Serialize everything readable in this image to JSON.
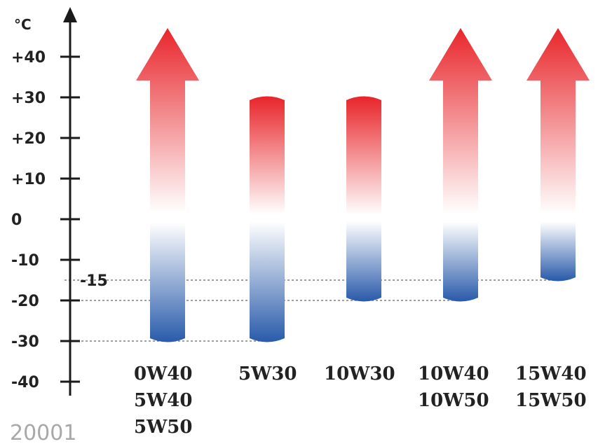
{
  "chart_data": {
    "type": "bar",
    "y_unit": "°C",
    "y_ticks": [
      "+40",
      "+30",
      "+20",
      "+10",
      "0",
      "-10",
      "-20",
      "-30",
      "-40"
    ],
    "y_tick_values": [
      40,
      30,
      20,
      10,
      0,
      -10,
      -20,
      -30,
      -40
    ],
    "ylim": [
      -40,
      40
    ],
    "reference_lines": [
      {
        "value": -15,
        "label": "-15"
      },
      {
        "value": -20,
        "label": ""
      },
      {
        "value": -30,
        "label": ""
      }
    ],
    "categories": [
      [
        "0W40",
        "5W40",
        "5W50"
      ],
      [
        "5W30"
      ],
      [
        "10W30"
      ],
      [
        "10W40",
        "10W50"
      ],
      [
        "15W40",
        "15W50"
      ]
    ],
    "series": [
      {
        "low": [
          -30,
          -30,
          -20,
          -20,
          -15
        ],
        "high": [
          40,
          30,
          30,
          40,
          40
        ],
        "open_ended_top": [
          true,
          false,
          false,
          true,
          true
        ]
      }
    ],
    "colors": {
      "hot": "#e8262b",
      "neutral": "#ffffff",
      "cold": "#2b5cab",
      "axis": "#1a1a1a",
      "reference_line": "#666666"
    },
    "code": "20001"
  }
}
